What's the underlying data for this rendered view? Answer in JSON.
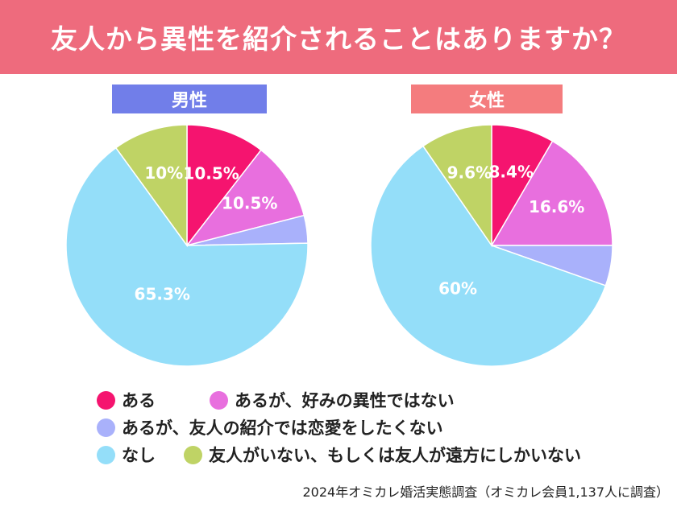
{
  "title": "友人から異性を紹介されることはありますか？",
  "legend": [
    {
      "label": "ある",
      "color": "#f5146f"
    },
    {
      "label": "あるが、好みの異性ではない",
      "color": "#e86fde"
    },
    {
      "label": "あるが、友人の紹介では恋愛をしたくない",
      "color": "#a9b1fb"
    },
    {
      "label": "なし",
      "color": "#94def9"
    },
    {
      "label": "友人がいない、もしくは友人が遠方にしかいない",
      "color": "#bfd365"
    }
  ],
  "source": "2024年オミカレ婚活実態調査（オミカレ会員1,137人に調査）",
  "chart_data": [
    {
      "type": "pie",
      "title": "男性",
      "categories": [
        "ある",
        "あるが、好みの異性ではない",
        "あるが、友人の紹介では恋愛をしたくない",
        "なし",
        "友人がいない、もしくは友人が遠方にしかいない"
      ],
      "values": [
        10.5,
        10.5,
        3.7,
        65.3,
        10
      ],
      "data_labels": [
        "10.5%",
        "10.5%",
        "",
        "65.3%",
        "10%"
      ]
    },
    {
      "type": "pie",
      "title": "女性",
      "categories": [
        "ある",
        "あるが、好みの異性ではない",
        "あるが、友人の紹介では恋愛をしたくない",
        "なし",
        "友人がいない、もしくは友人が遠方にしかいない"
      ],
      "values": [
        8.4,
        16.6,
        5.4,
        60,
        9.6
      ],
      "data_labels": [
        "8.4%",
        "16.6%",
        "",
        "60%",
        "9.6%"
      ]
    }
  ]
}
